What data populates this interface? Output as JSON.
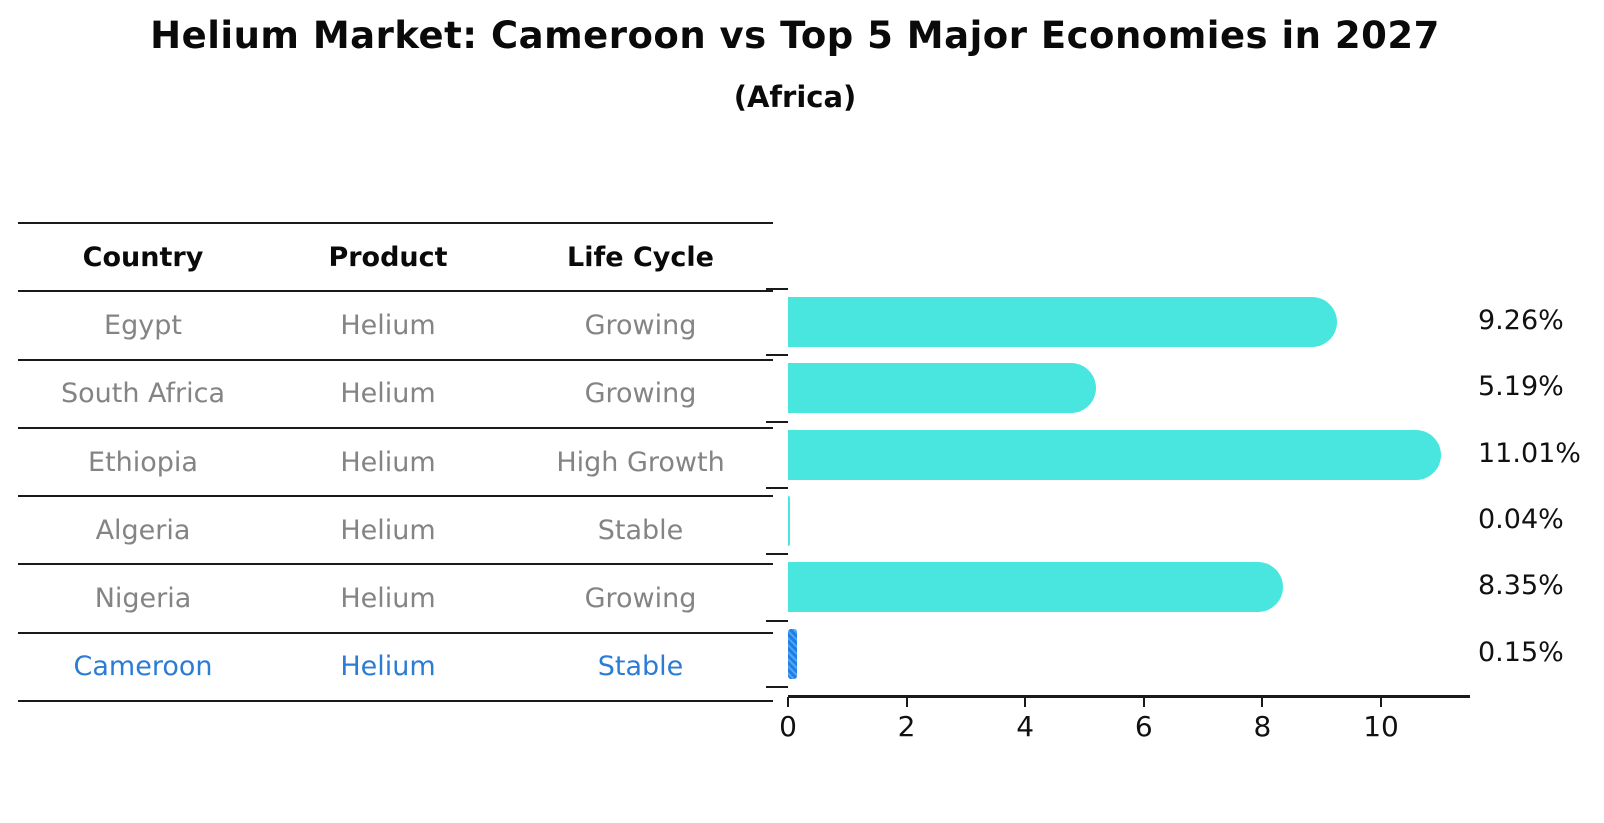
{
  "title": "Helium Market: Cameroon vs Top 5 Major Economies in 2027",
  "subtitle": "(Africa)",
  "table": {
    "headers": [
      "Country",
      "Product",
      "Life Cycle"
    ],
    "rows": [
      {
        "country": "Egypt",
        "product": "Helium",
        "life_cycle": "Growing",
        "highlight": false
      },
      {
        "country": "South Africa",
        "product": "Helium",
        "life_cycle": "Growing",
        "highlight": false
      },
      {
        "country": "Ethiopia",
        "product": "Helium",
        "life_cycle": "High Growth",
        "highlight": false
      },
      {
        "country": "Algeria",
        "product": "Helium",
        "life_cycle": "Stable",
        "highlight": false
      },
      {
        "country": "Nigeria",
        "product": "Helium",
        "life_cycle": "Growing",
        "highlight": false
      },
      {
        "country": "Cameroon",
        "product": "Helium",
        "life_cycle": "Stable",
        "highlight": true
      }
    ]
  },
  "chart_data": {
    "type": "bar",
    "orientation": "horizontal",
    "title": "Helium Market: Cameroon vs Top 5 Major Economies in 2027",
    "subtitle": "(Africa)",
    "categories": [
      "Egypt",
      "South Africa",
      "Ethiopia",
      "Algeria",
      "Nigeria",
      "Cameroon"
    ],
    "values": [
      9.26,
      5.19,
      11.01,
      0.04,
      8.35,
      0.15
    ],
    "value_labels": [
      "9.26%",
      "5.19%",
      "11.01%",
      "0.04%",
      "8.35%",
      "0.15%"
    ],
    "xlabel": "",
    "ylabel": "",
    "xlim": [
      0,
      11.5
    ],
    "xticks": [
      0,
      2,
      4,
      6,
      8,
      10
    ],
    "grid": false,
    "legend": "none",
    "value_label_position": "right-of-plot",
    "highlight_index": 5
  },
  "colors": {
    "bar": "#49e6e0",
    "highlight_bar": "#1e7fe8",
    "highlight_text": "#2b7cd4",
    "table_text": "#848484",
    "header_text": "#0a0a0a",
    "axis": "#1a1a1a",
    "background": "#ffffff"
  }
}
